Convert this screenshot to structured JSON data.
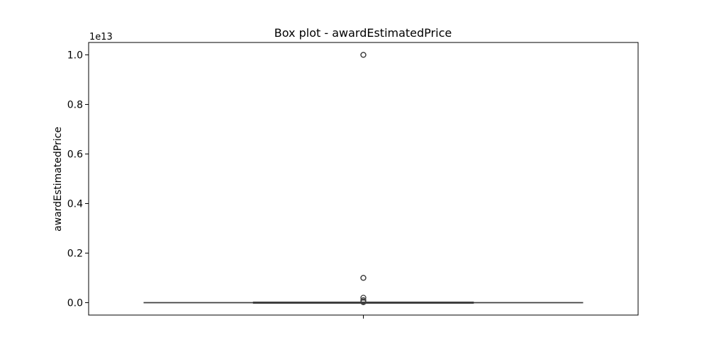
{
  "chart_data": {
    "type": "box",
    "title": "Box plot - awardEstimatedPrice",
    "xlabel": "",
    "ylabel": "awardEstimatedPrice",
    "y_scale_label": "1e13",
    "y_scale": 10000000000000,
    "ylim": [
      -0.05,
      1.05
    ],
    "yticks": [
      0.0,
      0.2,
      0.4,
      0.6,
      0.8,
      1.0
    ],
    "ytick_labels": [
      "0.0",
      "0.2",
      "0.4",
      "0.6",
      "0.8",
      "1.0"
    ],
    "grid": false,
    "box": {
      "q1": 0.0,
      "median": 0.0,
      "q3": 0.0,
      "whisker_low": 0.0,
      "whisker_high": 0.0,
      "outliers": [
        1.0,
        1.0,
        0.1,
        0.1,
        0.02,
        0.01,
        0.005,
        0.002
      ]
    },
    "colors": {
      "box_line": "#3f3f3f",
      "box_fill": "#3274a1"
    }
  }
}
